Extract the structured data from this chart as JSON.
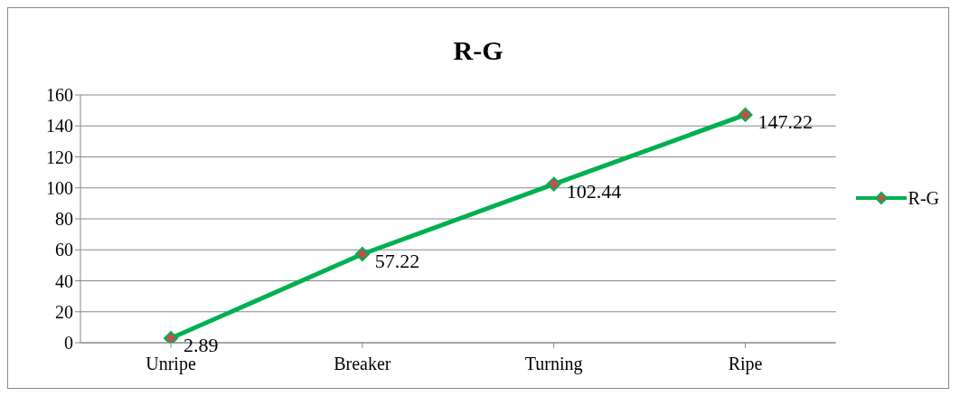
{
  "chart_data": {
    "type": "line",
    "title": "R-G",
    "categories": [
      "Unripe",
      "Breaker",
      "Turning",
      "Ripe"
    ],
    "series": [
      {
        "name": "R-G",
        "color": "#00b050",
        "colors": [
          "#c0504d",
          "#c0504d",
          "#c0504d",
          "#c0504d"
        ],
        "values": [
          2.89,
          57.22,
          102.44,
          147.22
        ]
      }
    ],
    "ylim": [
      0,
      160
    ],
    "yticks": [
      0,
      20,
      40,
      60,
      80,
      100,
      120,
      140,
      160
    ],
    "grid": "y",
    "legend": "right",
    "marker": "diamond",
    "line_style": "solid",
    "data_labels": true
  }
}
